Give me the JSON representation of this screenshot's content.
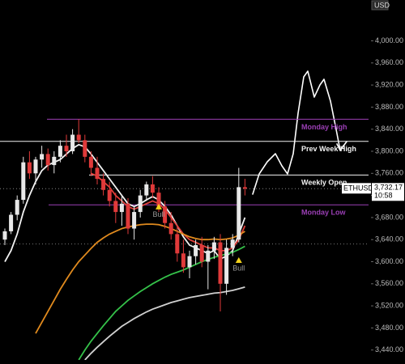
{
  "chart_data": {
    "type": "candlestick",
    "currency": "USD",
    "ylim": [
      3422,
      4074
    ],
    "yticks": [
      {
        "value": 4000,
        "label": "4,000.00"
      },
      {
        "value": 3960,
        "label": "3,960.00"
      },
      {
        "value": 3920,
        "label": "3,920.00"
      },
      {
        "value": 3880,
        "label": "3,880.00"
      },
      {
        "value": 3840,
        "label": "3,840.00"
      },
      {
        "value": 3800,
        "label": "3,800.00"
      },
      {
        "value": 3760,
        "label": "3,760.00"
      },
      {
        "value": 3720,
        "label": "3,720.00"
      },
      {
        "value": 3680,
        "label": "3,680.00"
      },
      {
        "value": 3640,
        "label": "3,640.00"
      },
      {
        "value": 3600,
        "label": "3,600.00"
      },
      {
        "value": 3560,
        "label": "3,560.00"
      },
      {
        "value": 3520,
        "label": "3,520.00"
      },
      {
        "value": 3480,
        "label": "3,480.00"
      },
      {
        "value": 3440,
        "label": "3,440.00"
      }
    ],
    "up_color": "#e8e8e8",
    "down_color": "#e03a3a",
    "open": [
      3640,
      3655,
      3685,
      3712,
      3780,
      3760,
      3785,
      3795,
      3775,
      3790,
      3810,
      3800,
      3830,
      3820,
      3790,
      3770,
      3750,
      3730,
      3710,
      3690,
      3705,
      3660,
      3690,
      3720,
      3740,
      3725,
      3700,
      3670,
      3650,
      3615,
      3590,
      3610,
      3630,
      3600,
      3620,
      3635,
      3560,
      3625,
      3640,
      3735
    ],
    "high": [
      3660,
      3690,
      3720,
      3790,
      3800,
      3790,
      3810,
      3805,
      3800,
      3820,
      3830,
      3840,
      3858,
      3830,
      3800,
      3790,
      3760,
      3745,
      3725,
      3720,
      3715,
      3700,
      3730,
      3745,
      3755,
      3735,
      3710,
      3690,
      3665,
      3640,
      3620,
      3640,
      3645,
      3630,
      3645,
      3650,
      3640,
      3650,
      3770,
      3750
    ],
    "low": [
      3630,
      3650,
      3675,
      3705,
      3750,
      3740,
      3770,
      3765,
      3760,
      3780,
      3790,
      3795,
      3815,
      3780,
      3755,
      3740,
      3720,
      3700,
      3670,
      3665,
      3650,
      3640,
      3680,
      3710,
      3715,
      3690,
      3660,
      3640,
      3600,
      3580,
      3570,
      3595,
      3590,
      3550,
      3605,
      3510,
      3540,
      3610,
      3635,
      3720
    ],
    "close": [
      3655,
      3685,
      3712,
      3780,
      3760,
      3785,
      3795,
      3775,
      3790,
      3810,
      3800,
      3830,
      3820,
      3790,
      3770,
      3750,
      3730,
      3710,
      3690,
      3705,
      3660,
      3690,
      3720,
      3740,
      3725,
      3700,
      3670,
      3650,
      3615,
      3590,
      3610,
      3630,
      3600,
      3620,
      3635,
      3560,
      3625,
      3640,
      3735,
      3732.17
    ],
    "lines": [
      {
        "color": "#f2f2f2",
        "values": [
          3600,
          3620,
          3650,
          3690,
          3720,
          3745,
          3765,
          3775,
          3780,
          3785,
          3795,
          3805,
          3812,
          3808,
          3795,
          3780,
          3765,
          3750,
          3735,
          3720,
          3705,
          3700,
          3705,
          3712,
          3718,
          3712,
          3700,
          3685,
          3665,
          3645,
          3630,
          3625,
          3620,
          3615,
          3620,
          3605,
          3610,
          3620,
          3650,
          3680
        ]
      },
      {
        "color": "#e0403a",
        "values": [
          null,
          null,
          null,
          null,
          null,
          null,
          null,
          null,
          null,
          null,
          null,
          null,
          null,
          null,
          3760,
          3755,
          3745,
          3735,
          3720,
          3710,
          3700,
          3695,
          3700,
          3705,
          3710,
          3705,
          3695,
          3680,
          3665,
          3650,
          3640,
          3635,
          3630,
          3625,
          3625,
          3620,
          3620,
          3625,
          3640,
          3665
        ]
      },
      {
        "color": "#e08a1e",
        "values": [
          null,
          null,
          null,
          null,
          null,
          3470,
          3490,
          3510,
          3530,
          3550,
          3568,
          3585,
          3600,
          3612,
          3624,
          3635,
          3643,
          3650,
          3655,
          3660,
          3663,
          3665,
          3667,
          3668,
          3668,
          3667,
          3664,
          3660,
          3655,
          3650,
          3645,
          3642,
          3640,
          3640,
          3641,
          3640,
          3641,
          3643,
          3648,
          3655
        ]
      },
      {
        "color": "#35c24a",
        "values": [
          null,
          null,
          null,
          null,
          null,
          null,
          null,
          null,
          null,
          null,
          null,
          null,
          3422,
          3440,
          3456,
          3470,
          3484,
          3497,
          3510,
          3520,
          3530,
          3538,
          3546,
          3553,
          3560,
          3566,
          3572,
          3577,
          3581,
          3585,
          3590,
          3595,
          3600,
          3604,
          3608,
          3611,
          3614,
          3617,
          3622,
          3628
        ]
      },
      {
        "color": "#d0d0d0",
        "values": [
          null,
          null,
          null,
          null,
          null,
          null,
          null,
          null,
          null,
          null,
          null,
          null,
          null,
          3422,
          3434,
          3445,
          3455,
          3465,
          3474,
          3483,
          3490,
          3497,
          3503,
          3509,
          3514,
          3518,
          3522,
          3526,
          3529,
          3532,
          3535,
          3537,
          3539,
          3541,
          3543,
          3544,
          3546,
          3548,
          3551,
          3554
        ]
      }
    ],
    "levels": [
      {
        "label": "Monday High",
        "value": 3858,
        "color": "#9b3fb5"
      },
      {
        "label": "Prev Week High",
        "value": 3818,
        "color": "#f2f2f2"
      },
      {
        "label": "Weekly Open",
        "value": 3757,
        "color": "#f2f2f2"
      },
      {
        "label": "Monday Low",
        "value": 3703,
        "color": "#9b3fb5"
      }
    ],
    "guides": [
      3632
    ],
    "signals": [
      {
        "label": "Bull",
        "index": 25,
        "price": 3705
      },
      {
        "label": "Bull",
        "index": 38,
        "price": 3608
      }
    ],
    "last": {
      "symbol": "ETHUSD",
      "value": 3732.17,
      "label": "3,732.17",
      "time": "10:58"
    }
  }
}
